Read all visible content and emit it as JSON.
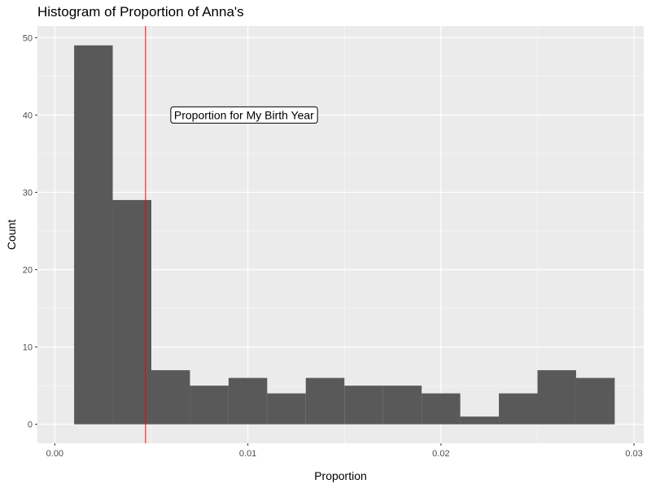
{
  "chart_data": {
    "type": "bar",
    "title": "Histogram of Proportion of Anna's",
    "xlabel": "Proportion",
    "ylabel": "Count",
    "xlim": [
      -0.0009,
      0.0305
    ],
    "ylim": [
      -2.45,
      51.5
    ],
    "bin_width": 0.002,
    "bins": [
      {
        "x0": 0.001,
        "x1": 0.003,
        "count": 49
      },
      {
        "x0": 0.003,
        "x1": 0.005,
        "count": 29
      },
      {
        "x0": 0.005,
        "x1": 0.007,
        "count": 7
      },
      {
        "x0": 0.007,
        "x1": 0.009,
        "count": 5
      },
      {
        "x0": 0.009,
        "x1": 0.011,
        "count": 6
      },
      {
        "x0": 0.011,
        "x1": 0.013,
        "count": 4
      },
      {
        "x0": 0.013,
        "x1": 0.015,
        "count": 6
      },
      {
        "x0": 0.015,
        "x1": 0.017,
        "count": 5
      },
      {
        "x0": 0.017,
        "x1": 0.019,
        "count": 5
      },
      {
        "x0": 0.019,
        "x1": 0.021,
        "count": 4
      },
      {
        "x0": 0.021,
        "x1": 0.023,
        "count": 1
      },
      {
        "x0": 0.023,
        "x1": 0.025,
        "count": 4
      },
      {
        "x0": 0.025,
        "x1": 0.027,
        "count": 7
      },
      {
        "x0": 0.027,
        "x1": 0.029,
        "count": 6
      }
    ],
    "x_ticks": [
      0.0,
      0.01,
      0.02,
      0.03
    ],
    "x_tick_labels": [
      "0.00",
      "0.01",
      "0.02",
      "0.03"
    ],
    "y_ticks": [
      0,
      10,
      20,
      30,
      40,
      50
    ],
    "y_tick_labels": [
      "0",
      "10",
      "20",
      "30",
      "40",
      "50"
    ],
    "vline": {
      "x": 0.0047,
      "color": "#ff0000"
    },
    "annotation": {
      "text": "Proportion for My Birth Year",
      "x": 0.0098,
      "y": 40
    },
    "bar_color": "#595959",
    "panel_background": "#ebebeb",
    "grid": true
  }
}
